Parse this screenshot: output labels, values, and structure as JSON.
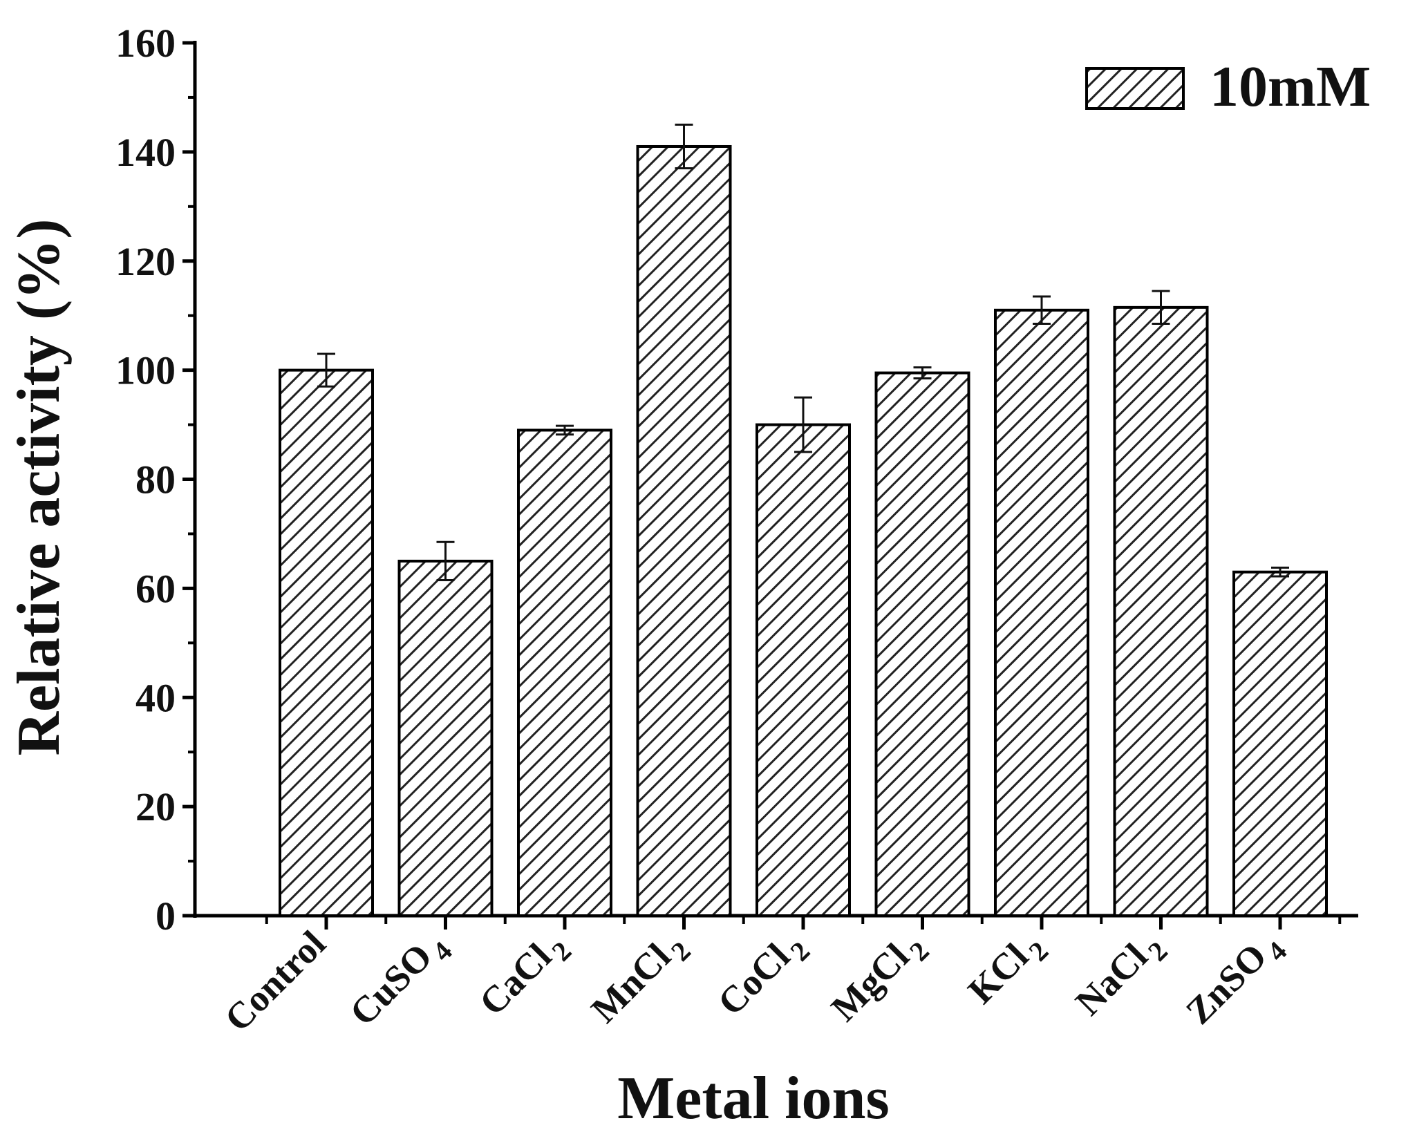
{
  "chart_data": {
    "type": "bar",
    "categories": [
      "Control",
      "CuSO4",
      "CaCl2",
      "MnCl2",
      "CoCl2",
      "MgCl2",
      "KCl2",
      "NaCl2",
      "ZnSO4"
    ],
    "category_labels": [
      {
        "base": "Control",
        "sub": ""
      },
      {
        "base": "CuSO",
        "sub": "4"
      },
      {
        "base": "CaCl",
        "sub": "2"
      },
      {
        "base": "MnCl",
        "sub": "2"
      },
      {
        "base": "CoCl",
        "sub": "2"
      },
      {
        "base": "MgCl",
        "sub": "2"
      },
      {
        "base": "KCl",
        "sub": "2"
      },
      {
        "base": "NaCl",
        "sub": "2"
      },
      {
        "base": "ZnSO",
        "sub": "4"
      }
    ],
    "series": [
      {
        "name": "10mM",
        "values": [
          100,
          65,
          89,
          141,
          90,
          99.5,
          111,
          111.5,
          63
        ],
        "errors": [
          3,
          3.5,
          0.8,
          4,
          5,
          1,
          2.5,
          3,
          0.8
        ]
      }
    ],
    "ylabel": "Relative activity (%)",
    "xlabel": "Metal ions",
    "ylim": [
      0,
      160
    ],
    "yticks": [
      0,
      20,
      40,
      60,
      80,
      100,
      120,
      140,
      160
    ],
    "pattern": "diagonal-hatch",
    "legend_position": "top-right",
    "grid": false,
    "colors": {
      "bar_fill": "#ffffff",
      "bar_stroke": "#000000",
      "hatch": "#222222"
    }
  }
}
